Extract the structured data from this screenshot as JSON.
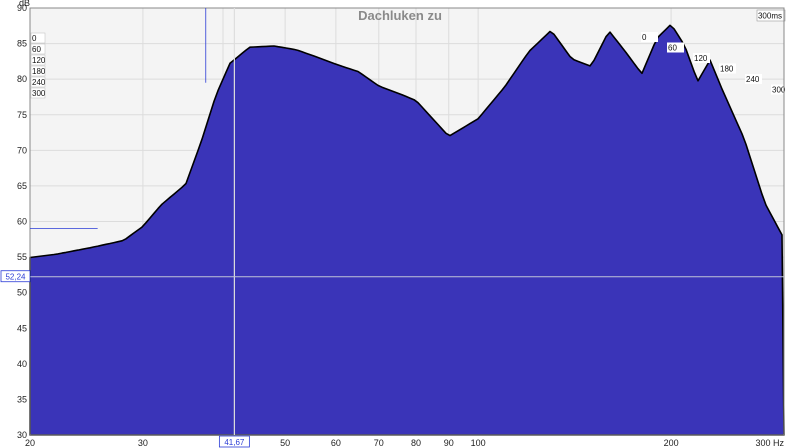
{
  "chart_data": {
    "type": "area",
    "title": "Dachluken zu",
    "ylabel": "dB",
    "xlabel": "Hz",
    "x_scale": "log",
    "xlim": [
      20,
      300
    ],
    "ylim": [
      30,
      90
    ],
    "x_ticks": [
      20,
      30,
      40,
      50,
      60,
      70,
      80,
      90,
      100,
      200,
      300
    ],
    "x_tick_labels": [
      "20",
      "30",
      "",
      "50",
      "60",
      "70",
      "80",
      "90",
      "100",
      "200",
      "300 Hz"
    ],
    "y_ticks": [
      30,
      35,
      40,
      45,
      50,
      55,
      60,
      65,
      70,
      75,
      80,
      85,
      90
    ],
    "time_axis_label": "300ms",
    "time_slices_ms": [
      "0",
      "60",
      "120",
      "180",
      "240",
      "300"
    ],
    "cursor": {
      "x_label": "41,67",
      "y_label": "52,24",
      "x": 41.67,
      "y": 52.24
    },
    "colors": {
      "fill": "#3a34b8",
      "stroke": "#000000",
      "grid": "#dcdcdc",
      "cursor": "#2a3bd6"
    },
    "series": [
      {
        "time_ms": 0,
        "x": [
          20,
          22,
          25,
          28,
          30,
          32,
          35,
          37,
          39,
          41,
          44,
          48,
          52,
          56,
          60,
          65,
          70,
          75,
          80,
          90,
          100,
          110,
          120,
          130,
          140,
          150,
          160,
          170,
          180,
          190,
          200,
          210,
          220,
          230,
          240,
          260,
          280,
          300
        ],
        "y": [
          55.5,
          56,
          57,
          58,
          60,
          63,
          66,
          72,
          78.5,
          83,
          85.3,
          85.5,
          85,
          84,
          83,
          82,
          80,
          79,
          78,
          73,
          75.5,
          80,
          85,
          88,
          84,
          83,
          88,
          85,
          82,
          87,
          89,
          86,
          81,
          84,
          80,
          73,
          64,
          59
        ]
      }
    ]
  }
}
